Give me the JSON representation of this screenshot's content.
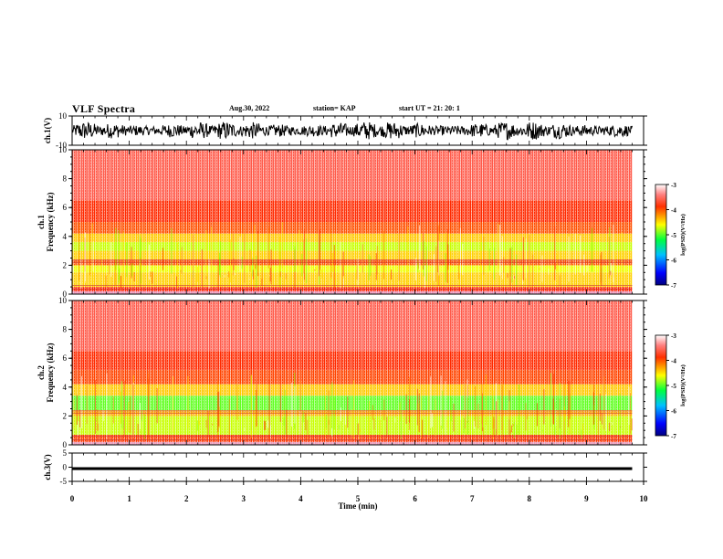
{
  "header": {
    "title": "VLF Spectra",
    "date": "Aug.30, 2022",
    "station": "station= KAP",
    "start": "start  UT  =   21: 20: 1"
  },
  "chart_data": [
    {
      "type": "line",
      "name": "ch1-waveform",
      "ylabel": "ch.1(V)",
      "ylim": [
        -10,
        10
      ],
      "yticks": [
        "10",
        "-10"
      ],
      "xlim": [
        0,
        10
      ],
      "description_of_signal": "dense noisy waveform spanning roughly -7 to 7 V",
      "data_extent_x": 9.8
    },
    {
      "type": "heatmap",
      "name": "ch1-spectrogram",
      "ylabel": "ch.1\nFrequency  (kHz)",
      "ylim": [
        0,
        10
      ],
      "yticks": [
        "0",
        "2",
        "4",
        "6",
        "8",
        "10"
      ],
      "xlim": [
        0,
        10
      ],
      "data_extent_x": 9.8,
      "bands": [
        {
          "from": 0.0,
          "to": 0.5,
          "color": "#ff2200"
        },
        {
          "from": 0.5,
          "to": 1.5,
          "color": "#ffd000"
        },
        {
          "from": 1.5,
          "to": 2.0,
          "color": "#f0ff00"
        },
        {
          "from": 2.0,
          "to": 2.4,
          "color": "#ff5500"
        },
        {
          "from": 2.4,
          "to": 3.0,
          "color": "#ffd000"
        },
        {
          "from": 3.0,
          "to": 3.6,
          "color": "#c8ff00"
        },
        {
          "from": 3.6,
          "to": 4.2,
          "color": "#ffc800"
        },
        {
          "from": 4.2,
          "to": 5.0,
          "color": "#ff5000"
        },
        {
          "from": 5.0,
          "to": 6.5,
          "color": "#ff2a00"
        },
        {
          "from": 6.5,
          "to": 10.0,
          "color": "#ff5a4a"
        }
      ]
    },
    {
      "type": "heatmap",
      "name": "ch2-spectrogram",
      "ylabel": "ch.2\nFrequency  (kHz)",
      "ylim": [
        0,
        10
      ],
      "yticks": [
        "0",
        "2",
        "4",
        "6",
        "8",
        "10"
      ],
      "xlim": [
        0,
        10
      ],
      "data_extent_x": 9.8,
      "bands": [
        {
          "from": 0.0,
          "to": 0.7,
          "color": "#ff3a00"
        },
        {
          "from": 0.7,
          "to": 2.0,
          "color": "#c8ff00"
        },
        {
          "from": 2.0,
          "to": 2.4,
          "color": "#ffb000"
        },
        {
          "from": 2.4,
          "to": 3.4,
          "color": "#60ff20"
        },
        {
          "from": 3.4,
          "to": 4.2,
          "color": "#ffc800"
        },
        {
          "from": 4.2,
          "to": 5.2,
          "color": "#ff4400"
        },
        {
          "from": 5.2,
          "to": 6.5,
          "color": "#ff2a00"
        },
        {
          "from": 6.5,
          "to": 10.0,
          "color": "#ff5a4a"
        }
      ]
    },
    {
      "type": "line",
      "name": "ch3-waveform",
      "ylabel": "ch.3(V)",
      "ylim": [
        -5,
        5
      ],
      "yticks": [
        "5",
        "0",
        "-5"
      ],
      "xlim": [
        0,
        10
      ],
      "data_extent_x": 9.8,
      "band_from": -1.0,
      "band_to": 0.0
    }
  ],
  "xaxis": {
    "label": "Time  (min)",
    "ticks": [
      "0",
      "1",
      "2",
      "3",
      "4",
      "5",
      "6",
      "7",
      "8",
      "9",
      "10"
    ]
  },
  "colorbar": {
    "label": "log(PSD)(V²/Hz)",
    "ticks": [
      "-3",
      "-4",
      "-5",
      "-6",
      "-7"
    ],
    "range": [
      -7,
      -3
    ]
  },
  "colors": {
    "waveform": "#000000",
    "background": "#ffffff"
  }
}
